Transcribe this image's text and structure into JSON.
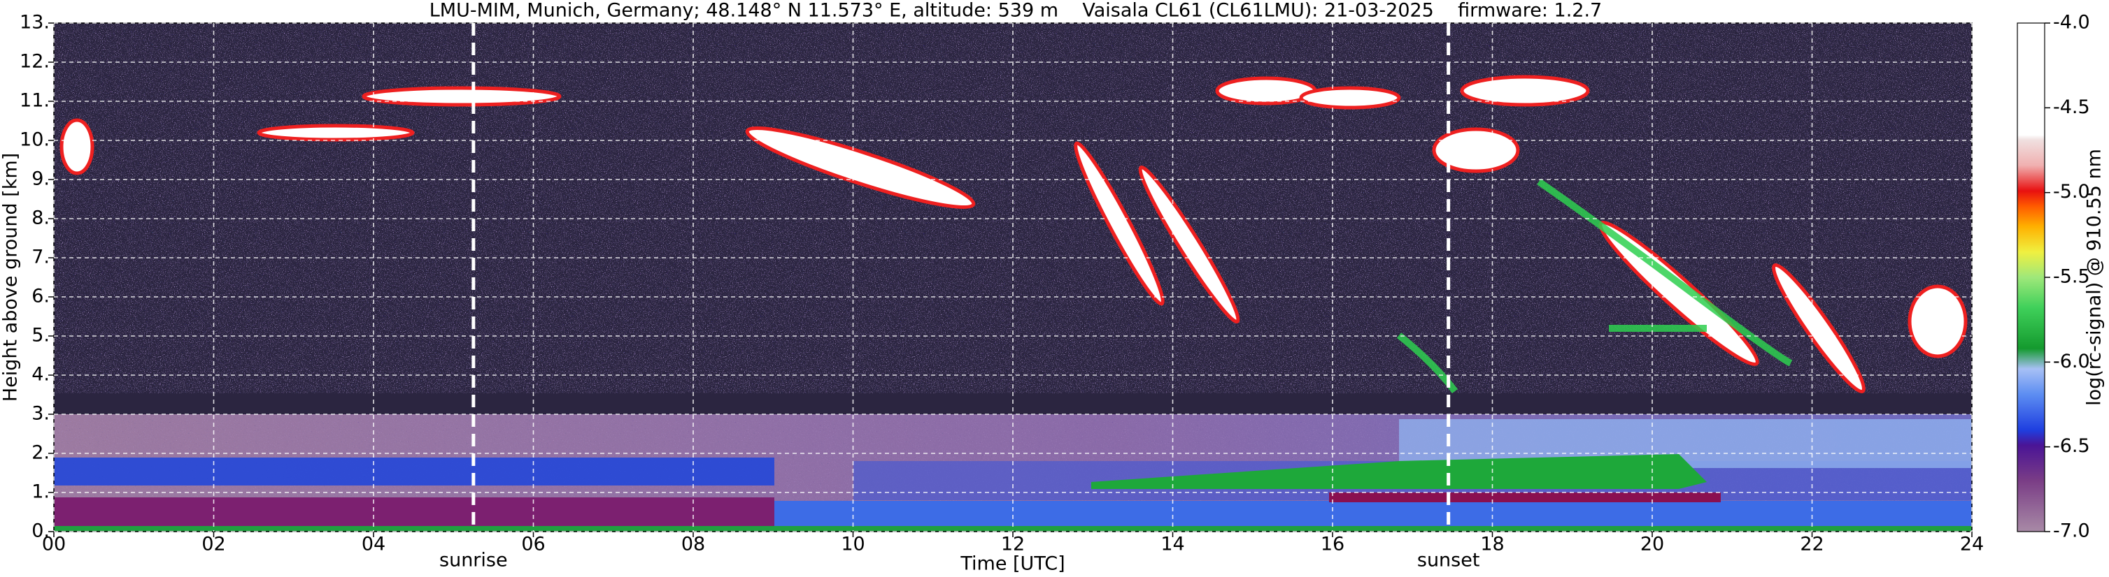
{
  "chart_data": {
    "type": "heatmap",
    "title": "LMU-MIM, Munich, Germany; 48.148° N 11.573° E, altitude: 539 m    Vaisala CL61 (CL61LMU): 21-03-2025    firmware: 1.2.7",
    "x_label": "Time [UTC]",
    "y_label": "Height above ground [km]",
    "colorbar_label": "log(rc-signal) @ 910.55 nm",
    "xlim": [
      0,
      24
    ],
    "xticks": [
      {
        "value": 0,
        "label": "00"
      },
      {
        "value": 2,
        "label": "02"
      },
      {
        "value": 4,
        "label": "04"
      },
      {
        "value": 6,
        "label": "06"
      },
      {
        "value": 8,
        "label": "08"
      },
      10,
      12,
      14,
      16,
      18,
      20,
      22,
      24
    ],
    "ylim": [
      0,
      13
    ],
    "yticks": [
      {
        "value": 0,
        "label": "0."
      },
      {
        "value": 1,
        "label": "1."
      },
      {
        "value": 2,
        "label": "2."
      },
      {
        "value": 3,
        "label": "3."
      },
      {
        "value": 4,
        "label": "4."
      },
      {
        "value": 5,
        "label": "5."
      },
      {
        "value": 6,
        "label": "6."
      },
      {
        "value": 7,
        "label": "7."
      },
      {
        "value": 8,
        "label": "8."
      },
      {
        "value": 9,
        "label": "9."
      },
      {
        "value": 10,
        "label": "10."
      },
      {
        "value": 11,
        "label": "11."
      },
      {
        "value": 12,
        "label": "12."
      },
      {
        "value": 13,
        "label": "13."
      }
    ],
    "clim": [
      -7,
      -4
    ],
    "cticks": [
      {
        "value": -4,
        "label": "-4.0"
      },
      -4.5,
      {
        "value": -5,
        "label": "-5.0"
      },
      -5.5,
      {
        "value": -6,
        "label": "-6.0"
      },
      -6.5,
      {
        "value": -7,
        "label": "-7.0"
      }
    ],
    "annotations": [
      {
        "x": 5.25,
        "text": "sunrise"
      },
      {
        "x": 17.45,
        "text": "sunset"
      }
    ],
    "grid": true
  }
}
